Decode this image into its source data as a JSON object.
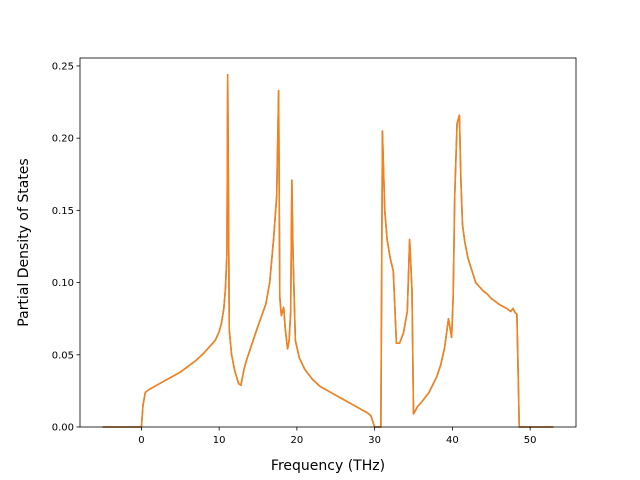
{
  "chart_data": {
    "type": "line",
    "title": "",
    "xlabel": "Frequency (THz)",
    "ylabel": "Partial Density of States",
    "xlim": [
      -7.9,
      55.9
    ],
    "ylim": [
      0,
      0.2555
    ],
    "grid": false,
    "legend": "none",
    "x_ticks": [
      0,
      10,
      20,
      30,
      40,
      50
    ],
    "y_ticks": [
      0.0,
      0.05,
      0.1,
      0.15,
      0.2,
      0.25
    ],
    "x_tick_labels": [
      "0",
      "10",
      "20",
      "30",
      "40",
      "50"
    ],
    "y_tick_labels": [
      "0.00",
      "0.05",
      "0.10",
      "0.15",
      "0.20",
      "0.25"
    ],
    "series": [
      {
        "color": "#ff7f0e",
        "under_color": "#1f77b4",
        "x": [
          -5,
          -0.2,
          0,
          0.2,
          0.5,
          1,
          2,
          3,
          4,
          5,
          6,
          7,
          8,
          9,
          9.5,
          10,
          10.3,
          10.6,
          10.8,
          11.0,
          11.1,
          11.3,
          11.6,
          12,
          12.5,
          12.8,
          13.2,
          13.5,
          14,
          15,
          16,
          16.5,
          17,
          17.4,
          17.65,
          17.8,
          18.0,
          18.3,
          18.5,
          18.8,
          19.0,
          19.2,
          19.35,
          19.5,
          19.8,
          20.3,
          21,
          22,
          23,
          24,
          25,
          26,
          27,
          28,
          29,
          29.5,
          30,
          30.5,
          30.8,
          31.0,
          31.3,
          31.6,
          32,
          32.4,
          32.8,
          33.2,
          33.7,
          34.2,
          34.5,
          34.8,
          35.0,
          35.2,
          35.5,
          36,
          37,
          38,
          38.5,
          39,
          39.5,
          39.9,
          40.1,
          40.3,
          40.6,
          40.9,
          41.1,
          41.3,
          41.6,
          42,
          43,
          44,
          44.5,
          45,
          46,
          47,
          47.5,
          47.8,
          48.1,
          48.3,
          48.6,
          49,
          53
        ],
        "y": [
          0,
          0,
          0,
          0.015,
          0.024,
          0.026,
          0.029,
          0.032,
          0.035,
          0.038,
          0.042,
          0.046,
          0.051,
          0.057,
          0.06,
          0.066,
          0.072,
          0.082,
          0.095,
          0.12,
          0.244,
          0.067,
          0.05,
          0.039,
          0.03,
          0.029,
          0.04,
          0.046,
          0.054,
          0.07,
          0.085,
          0.1,
          0.13,
          0.16,
          0.233,
          0.09,
          0.077,
          0.083,
          0.068,
          0.054,
          0.06,
          0.08,
          0.171,
          0.12,
          0.06,
          0.048,
          0.04,
          0.033,
          0.028,
          0.025,
          0.022,
          0.019,
          0.016,
          0.013,
          0.01,
          0.008,
          0,
          0,
          0,
          0.205,
          0.15,
          0.13,
          0.117,
          0.108,
          0.058,
          0.058,
          0.065,
          0.08,
          0.13,
          0.095,
          0.009,
          0.011,
          0.014,
          0.017,
          0.024,
          0.035,
          0.043,
          0.055,
          0.075,
          0.062,
          0.09,
          0.16,
          0.21,
          0.216,
          0.17,
          0.14,
          0.128,
          0.117,
          0.1,
          0.094,
          0.092,
          0.089,
          0.085,
          0.082,
          0.08,
          0.082,
          0.079,
          0.078,
          0,
          0,
          0
        ]
      }
    ]
  }
}
